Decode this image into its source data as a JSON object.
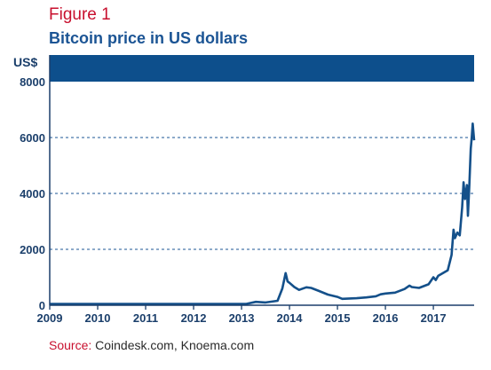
{
  "figure_label": "Figure 1",
  "source": {
    "label": "Source:",
    "text": "Coindesk.com, Knoema.com"
  },
  "colors": {
    "line": "#14508a",
    "band": "#0d4f8c",
    "axis": "#1b3f6b",
    "grid": "#1b5494",
    "accent": "#c8102e"
  },
  "chart_data": {
    "type": "line",
    "title": "Bitcoin price in US dollars",
    "ylabel": "US$",
    "xlabel": "",
    "xlim": [
      2009.0,
      2017.85
    ],
    "ylim": [
      0,
      8000
    ],
    "x_ticks": [
      "2009",
      "2010",
      "2011",
      "2012",
      "2013",
      "2014",
      "2015",
      "2016",
      "2017"
    ],
    "y_ticks": [
      "0",
      "2000",
      "4000",
      "6000",
      "8000"
    ],
    "grid": "horizontal-dashed",
    "x": [
      2009.0,
      2010.5,
      2011.4,
      2012.0,
      2012.9,
      2013.1,
      2013.3,
      2013.5,
      2013.75,
      2013.85,
      2013.92,
      2013.96,
      2014.0,
      2014.1,
      2014.2,
      2014.35,
      2014.45,
      2014.6,
      2014.8,
      2015.0,
      2015.1,
      2015.4,
      2015.6,
      2015.8,
      2015.9,
      2016.0,
      2016.2,
      2016.4,
      2016.5,
      2016.55,
      2016.7,
      2016.9,
      2017.0,
      2017.05,
      2017.1,
      2017.2,
      2017.3,
      2017.38,
      2017.42,
      2017.45,
      2017.5,
      2017.55,
      2017.6,
      2017.63,
      2017.66,
      2017.7,
      2017.72,
      2017.75,
      2017.78,
      2017.8,
      2017.82,
      2017.85
    ],
    "values": [
      0,
      0,
      10,
      5,
      15,
      40,
      120,
      100,
      160,
      600,
      1150,
      850,
      800,
      650,
      550,
      640,
      620,
      520,
      380,
      300,
      230,
      250,
      280,
      320,
      390,
      420,
      450,
      580,
      700,
      650,
      620,
      750,
      1000,
      900,
      1050,
      1150,
      1250,
      1800,
      2700,
      2400,
      2600,
      2500,
      3500,
      4400,
      3800,
      4300,
      3200,
      4300,
      5600,
      6000,
      6500,
      5900
    ]
  }
}
